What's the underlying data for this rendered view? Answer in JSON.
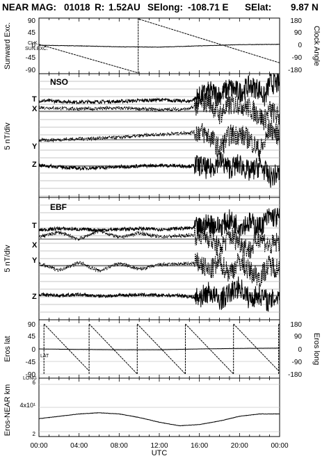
{
  "header": {
    "mission": "NEAR MAG:",
    "date_code": "01018",
    "r_label": "R:",
    "r_value": "1.52AU",
    "selong_label": "SElong:",
    "selong_value": "-108.71 E",
    "selat_label": "SElat:",
    "selat_value": "9.87 N"
  },
  "x_axis": {
    "label": "UTC",
    "ticks": [
      "00:00",
      "04:00",
      "08:00",
      "12:00",
      "16:00",
      "20:00",
      "00:00"
    ]
  },
  "panels": {
    "panel1": {
      "left_label": "Sunward Exc.",
      "right_label": "Clock Angle",
      "left_ticks": [
        "90",
        "45",
        "0",
        "-45",
        "-90"
      ],
      "right_ticks": [
        "180",
        "90",
        "0",
        "-90",
        "-180"
      ],
      "inline_labels": [
        "CLK.",
        "SUN.EXC."
      ]
    },
    "panel2": {
      "title": "NSO",
      "left_label": "5 nT/div",
      "trace_labels": [
        "T",
        "X",
        "Y",
        "Z"
      ]
    },
    "panel3": {
      "title": "EBF",
      "left_label": "5 nT/div",
      "trace_labels": [
        "T",
        "X",
        "Y",
        "Z"
      ]
    },
    "panel4": {
      "left_label": "Eros lat",
      "right_label": "Eros long",
      "left_ticks": [
        "90",
        "45",
        "0",
        "-45",
        "-90"
      ],
      "right_ticks": [
        "180",
        "90",
        "0",
        "-90",
        "-180"
      ],
      "inline_labels": [
        "LAT",
        "LONG"
      ]
    },
    "panel5": {
      "left_label": "Eros-NEAR km",
      "left_ticks": [
        "6",
        "4x10¹",
        "2"
      ]
    }
  },
  "chart_data": [
    {
      "type": "line",
      "panel": "sunward-clock",
      "x": [
        0,
        4,
        8,
        9.9,
        9.9,
        12,
        16,
        20,
        24
      ],
      "series": [
        {
          "name": "CLK.",
          "axis": "right",
          "x": [
            0,
            9.9,
            9.9,
            24
          ],
          "values": [
            10,
            -175,
            175,
            -110
          ]
        },
        {
          "name": "SUN.EXC.",
          "axis": "left",
          "x": [
            0,
            4,
            8,
            12,
            16,
            20,
            24
          ],
          "values": [
            2,
            0,
            -3,
            -4,
            0,
            4,
            5
          ]
        }
      ],
      "xlim": [
        0,
        24
      ],
      "ylim_left": [
        -90,
        90
      ],
      "ylim_right": [
        -180,
        180
      ],
      "xlabel": "UTC"
    },
    {
      "type": "line",
      "panel": "NSO",
      "title": "NSO",
      "ylabel": "5 nT/div",
      "series": [
        {
          "name": "T",
          "baseline": "T",
          "x": [
            0,
            4,
            8,
            12,
            15,
            16,
            17,
            18,
            19,
            20,
            21,
            22,
            22.5,
            23,
            24
          ],
          "values": [
            0.3,
            0.1,
            0.2,
            0.4,
            0.2,
            0.8,
            1.5,
            1.0,
            2.0,
            1.4,
            2.2,
            1.8,
            0.6,
            2.6,
            2.4
          ]
        },
        {
          "name": "X",
          "baseline": "X",
          "x": [
            0,
            4,
            8,
            12,
            15,
            16,
            17,
            18,
            19,
            20,
            21,
            22,
            22.5,
            23,
            24
          ],
          "values": [
            0.5,
            0.3,
            0.4,
            0.2,
            0.3,
            1.0,
            1.3,
            -0.5,
            0.8,
            1.0,
            0.4,
            -0.6,
            -1.2,
            0.2,
            -0.8
          ]
        },
        {
          "name": "Y",
          "baseline": "Y",
          "x": [
            0,
            4,
            8,
            12,
            15,
            16,
            17,
            18,
            19,
            20,
            21,
            22,
            22.5,
            23,
            24
          ],
          "values": [
            -0.1,
            0.1,
            0.3,
            0.7,
            0.9,
            1.1,
            0.5,
            -1.2,
            0.6,
            0.7,
            0.1,
            -1.5,
            -0.5,
            1.5,
            0.5
          ]
        },
        {
          "name": "Z",
          "baseline": "Z",
          "x": [
            0,
            4,
            8,
            12,
            15,
            16,
            17,
            18,
            19,
            20,
            21,
            22,
            22.5,
            23,
            24
          ],
          "values": [
            0.1,
            -0.3,
            -0.1,
            0.1,
            0.0,
            0.1,
            -0.5,
            0.8,
            -0.3,
            0.3,
            -0.8,
            0.0,
            -0.5,
            -1.5,
            -0.9
          ]
        }
      ],
      "xlim": [
        0,
        24
      ]
    },
    {
      "type": "line",
      "panel": "EBF",
      "title": "EBF",
      "ylabel": "5 nT/div",
      "series": [
        {
          "name": "T",
          "baseline": "T",
          "x": [
            0,
            2,
            4,
            6,
            8,
            10,
            12,
            14,
            16,
            17,
            18,
            19,
            20,
            21,
            22,
            23,
            24
          ],
          "values": [
            0.0,
            0.2,
            0.1,
            0.0,
            0.1,
            0.2,
            0.1,
            0.2,
            0.3,
            0.9,
            0.4,
            1.3,
            0.6,
            1.0,
            0.4,
            1.8,
            1.6
          ]
        },
        {
          "name": "X",
          "baseline": "X",
          "x": [
            0,
            2,
            4,
            6,
            8,
            10,
            12,
            14,
            16,
            17,
            18,
            19,
            20,
            21,
            22,
            23,
            24
          ],
          "values": [
            0.3,
            0.9,
            0.0,
            1.1,
            0.2,
            0.8,
            0.3,
            0.4,
            0.6,
            0.2,
            -1.3,
            0.5,
            -0.3,
            -1.5,
            0.4,
            -1.0,
            -0.2
          ]
        },
        {
          "name": "Y",
          "baseline": "Y",
          "x": [
            0,
            2,
            4,
            6,
            8,
            10,
            12,
            14,
            16,
            17,
            18,
            19,
            20,
            21,
            22,
            23,
            24
          ],
          "values": [
            0.2,
            -0.6,
            0.4,
            -0.7,
            0.3,
            -0.5,
            0.1,
            0.2,
            0.3,
            -0.8,
            0.5,
            -1.0,
            0.6,
            -0.7,
            -1.5,
            0.1,
            -0.4
          ]
        },
        {
          "name": "Z",
          "baseline": "Z",
          "x": [
            0,
            2,
            4,
            6,
            8,
            10,
            12,
            14,
            16,
            17,
            18,
            19,
            20,
            21,
            22,
            23,
            24
          ],
          "values": [
            0.1,
            0.0,
            0.1,
            -0.1,
            0.0,
            0.1,
            0.0,
            0.0,
            -0.3,
            0.5,
            -0.7,
            0.3,
            1.2,
            -0.5,
            0.2,
            -0.9,
            0.2
          ]
        }
      ],
      "xlim": [
        0,
        24
      ]
    },
    {
      "type": "line",
      "panel": "eros-latlong",
      "series": [
        {
          "name": "LAT",
          "axis": "left",
          "x": [
            0,
            4,
            8,
            12,
            16,
            20,
            24
          ],
          "values": [
            0,
            -2,
            -3,
            -3,
            0,
            2,
            3
          ]
        },
        {
          "name": "LONG",
          "axis": "right",
          "sawtooth_peaks_utc": [
            0.5,
            5.0,
            9.8,
            14.6,
            19.4,
            23.9
          ],
          "values_range": [
            -180,
            180
          ]
        }
      ],
      "xlim": [
        0,
        24
      ],
      "ylim_left": [
        -90,
        90
      ],
      "ylim_right": [
        -180,
        180
      ]
    },
    {
      "type": "line",
      "panel": "eros-near-km",
      "series": [
        {
          "name": "Eros-NEAR km",
          "x": [
            0,
            2,
            4,
            6,
            8,
            10,
            12,
            14,
            16,
            18,
            20,
            22,
            24
          ],
          "values": [
            31,
            33,
            35,
            36,
            35,
            32,
            28,
            25,
            26,
            29,
            33,
            35,
            35
          ]
        }
      ],
      "xlim": [
        0,
        24
      ],
      "ylim": [
        10,
        65
      ]
    }
  ]
}
